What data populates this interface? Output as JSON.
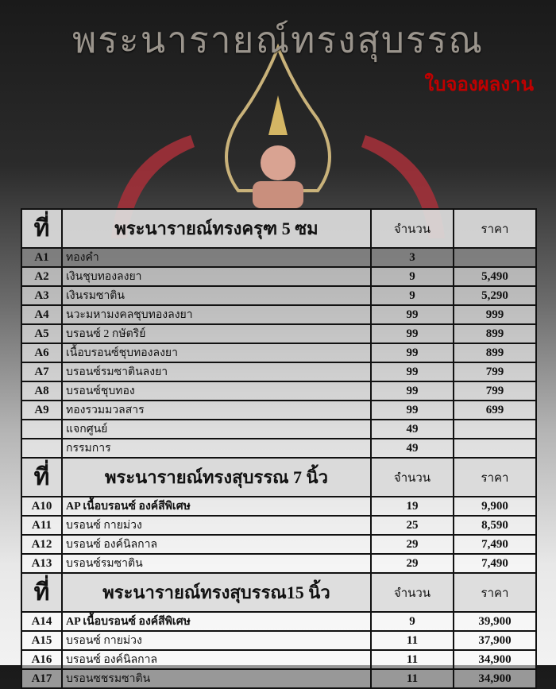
{
  "header": {
    "title": "พระนารายณ์ทรงสุบรรณ",
    "subtitle": "ใบจองผลงาน"
  },
  "colors": {
    "title": "#9a948c",
    "subtitle": "#c00000",
    "accent_red": "#a8303a"
  },
  "sections": [
    {
      "no_label": "ที่",
      "title": "พระนารายณ์ทรงครุฑ 5 ซม",
      "qty_label": "จำนวน",
      "price_label": "ราคา",
      "rows": [
        {
          "code": "A1",
          "name": "ทองคำ",
          "qty": "3",
          "price": ""
        },
        {
          "code": "A2",
          "name": "เงินชุบทองลงยา",
          "qty": "9",
          "price": "5,490"
        },
        {
          "code": "A3",
          "name": "เงินรมซาติน",
          "qty": "9",
          "price": "5,290"
        },
        {
          "code": "A4",
          "name": "นวะมหามงคลชุบทองลงยา",
          "qty": "99",
          "price": "999"
        },
        {
          "code": "A5",
          "name": "บรอนซ์ 2 กษัตริย์",
          "qty": "99",
          "price": "899"
        },
        {
          "code": "A6",
          "name": "เนื้อบรอนซ์ชุบทองลงยา",
          "qty": "99",
          "price": "899"
        },
        {
          "code": "A7",
          "name": "บรอนซ์รมซาตินลงยา",
          "qty": "99",
          "price": "799"
        },
        {
          "code": "A8",
          "name": "บรอนซ์ชุบทอง",
          "qty": "99",
          "price": "799"
        },
        {
          "code": "A9",
          "name": "ทองรวมมวลสาร",
          "qty": "99",
          "price": "699"
        },
        {
          "code": "",
          "name": "แจกศูนย์",
          "qty": "49",
          "price": ""
        },
        {
          "code": "",
          "name": "กรรมการ",
          "qty": "49",
          "price": ""
        }
      ]
    },
    {
      "no_label": "ที่",
      "title": "พระนารายณ์ทรงสุบรรณ 7 นิ้ว",
      "qty_label": "จำนวน",
      "price_label": "ราคา",
      "rows": [
        {
          "code": "A10",
          "name": "AP เนื้อบรอนซ์  องค์สีพิเศษ",
          "qty": "19",
          "price": "9,900"
        },
        {
          "code": "A11",
          "name": "บรอนซ์ กายม่วง",
          "qty": "25",
          "price": "8,590"
        },
        {
          "code": "A12",
          "name": "บรอนซ์ องค์นิลกาล",
          "qty": "29",
          "price": "7,490"
        },
        {
          "code": "A13",
          "name": "บรอนซ์รมซาติน",
          "qty": "29",
          "price": "7,490"
        }
      ]
    },
    {
      "no_label": "ที่",
      "title": "พระนารายณ์ทรงสุบรรณ15 นิ้ว",
      "qty_label": "จำนวน",
      "price_label": "ราคา",
      "rows": [
        {
          "code": "A14",
          "name": "AP เนื้อบรอนซ์  องค์สีพิเศษ",
          "qty": "9",
          "price": "39,900"
        },
        {
          "code": "A15",
          "name": "บรอนซ์ กายม่วง",
          "qty": "11",
          "price": "37,900"
        },
        {
          "code": "A16",
          "name": "บรอนซ์ องค์นิลกาล",
          "qty": "11",
          "price": "34,900"
        },
        {
          "code": "A17",
          "name": "บรอนซชรมซาติน",
          "qty": "11",
          "price": "34,900"
        }
      ]
    }
  ]
}
